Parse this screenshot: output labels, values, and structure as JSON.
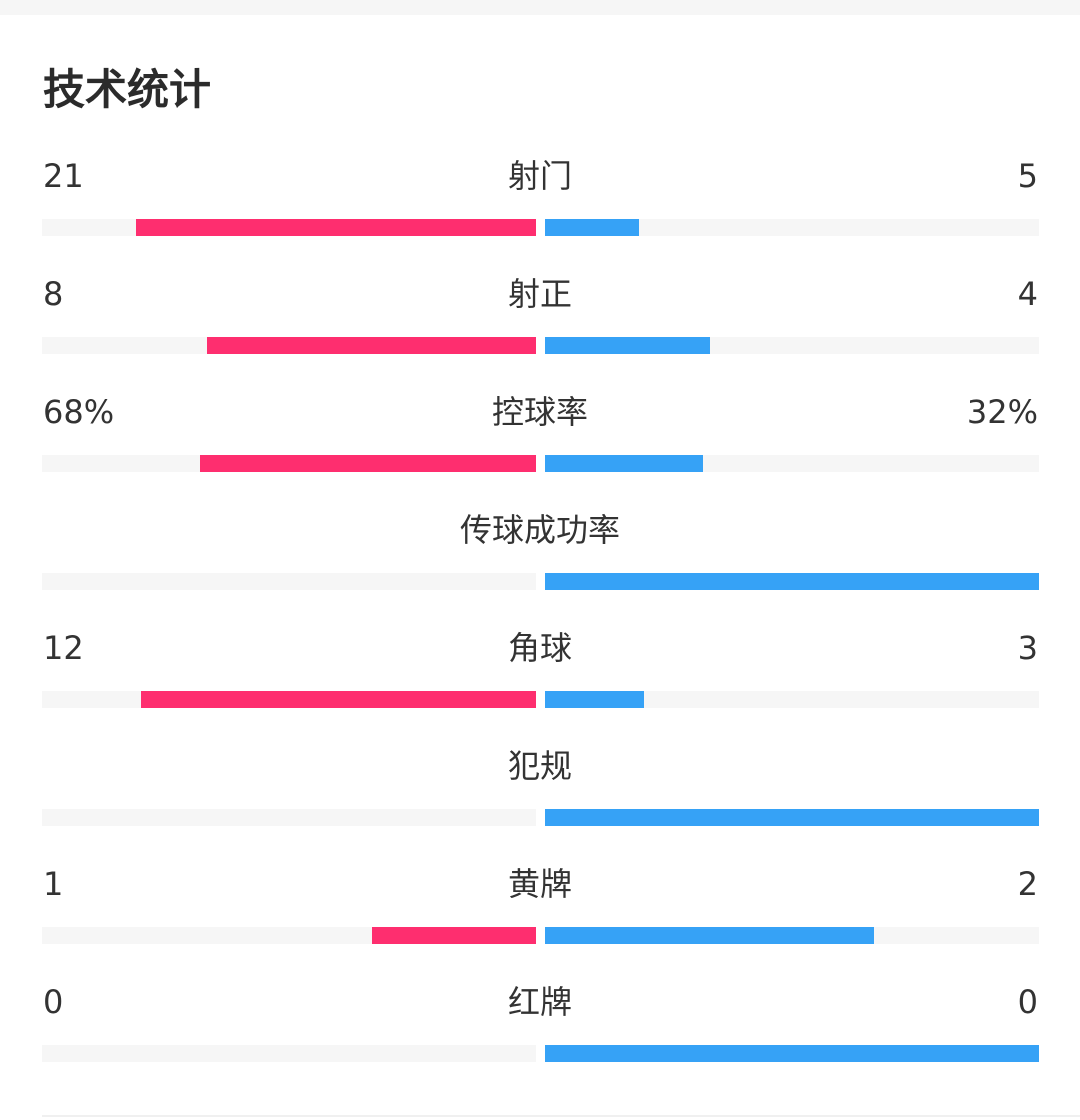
{
  "title": "技术统计",
  "colors": {
    "home": "#fe2e6f",
    "away": "#36a2f6",
    "track": "#f6f6f6"
  },
  "stats": [
    {
      "label": "射门",
      "home": "21",
      "away": "5",
      "home_fraction": 0.81,
      "away_fraction": 0.19
    },
    {
      "label": "射正",
      "home": "8",
      "away": "4",
      "home_fraction": 0.667,
      "away_fraction": 0.333
    },
    {
      "label": "控球率",
      "home": "68%",
      "away": "32%",
      "home_fraction": 0.68,
      "away_fraction": 0.32
    },
    {
      "label": "传球成功率",
      "home_fraction": 0,
      "away_fraction": 1
    },
    {
      "label": "角球",
      "home": "12",
      "away": "3",
      "home_fraction": 0.8,
      "away_fraction": 0.2
    },
    {
      "label": "犯规",
      "home_fraction": 0,
      "away_fraction": 1
    },
    {
      "label": "黄牌",
      "home": "1",
      "away": "2",
      "home_fraction": 0.333,
      "away_fraction": 0.667
    },
    {
      "label": "红牌",
      "home": "0",
      "away": "0",
      "home_fraction": 0,
      "away_fraction": 1
    }
  ]
}
